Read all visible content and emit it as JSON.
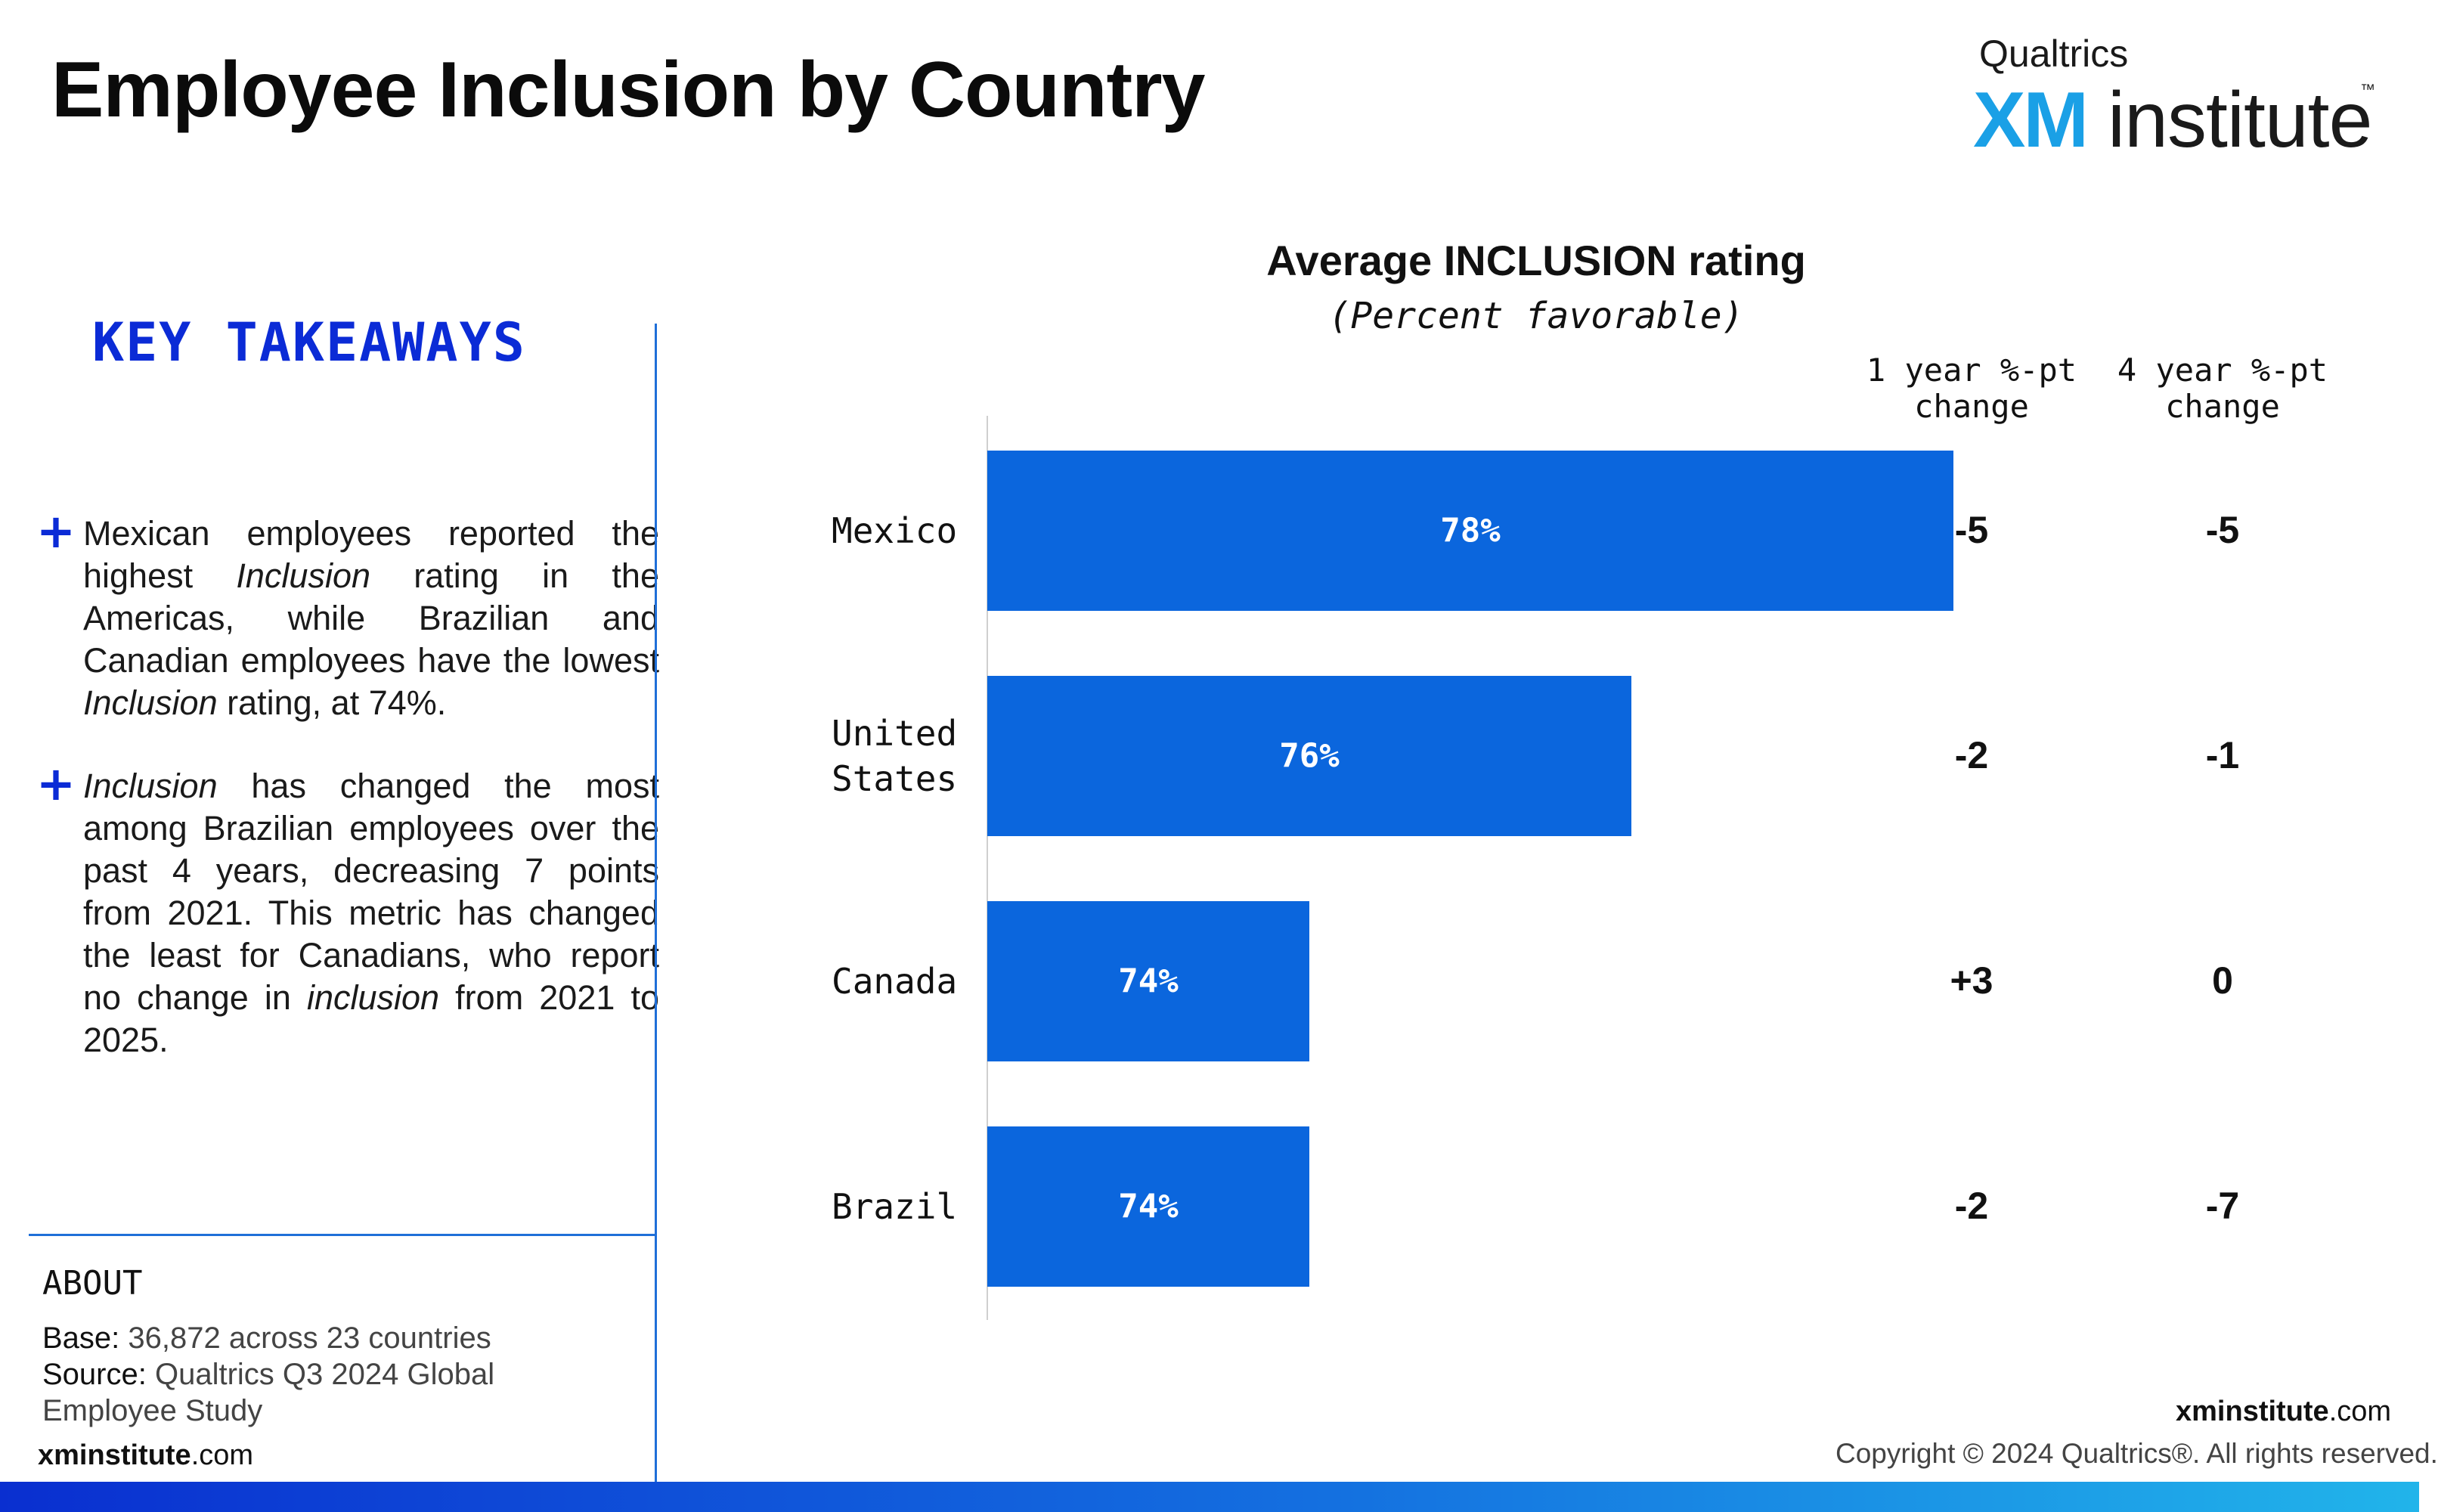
{
  "header": {
    "title": "Employee Inclusion by Country",
    "logo": {
      "top_text": "Qualtrics",
      "xm": "XM",
      "institute": "institute",
      "tm": "™"
    }
  },
  "takeaways": {
    "heading": "KEY TAKEAWAYS",
    "items": [
      {
        "parts": [
          "Mexican employees reported the highest ",
          "Inclusion",
          " rating in the Americas, while Brazilian and Canadian employees have the lowest ",
          "Inclusion",
          " rating, at 74%."
        ]
      },
      {
        "parts": [
          "Inclusion",
          " has changed the most among Brazilian employees over the past 4 years, decreasing 7 points from 2021. This metric has changed the least for Canadians, who report no change in ",
          "inclusion",
          " from 2021 to 2025."
        ]
      }
    ]
  },
  "about": {
    "heading": "ABOUT",
    "base_label": "Base:",
    "base_value": " 36,872 across 23 countries",
    "source_label": "Source:",
    "source_value": " Qualtrics Q3 2024 Global Employee Study"
  },
  "footer": {
    "site_bold": "xminstitute",
    "site_rest": ".com",
    "copyright": "Copyright © 2024 Qualtrics®. All rights reserved."
  },
  "colors": {
    "bar": "#0b66dd",
    "accent": "#0b2bd6",
    "divider": "#1f6fd8"
  },
  "chart_data": {
    "type": "bar",
    "orientation": "horizontal",
    "title": "Average INCLUSION rating",
    "subtitle": "(Percent favorable)",
    "categories": [
      "Mexico",
      "United States",
      "Canada",
      "Brazil"
    ],
    "category_lines": [
      [
        "Mexico"
      ],
      [
        "United",
        "States"
      ],
      [
        "Canada"
      ],
      [
        "Brazil"
      ]
    ],
    "values": [
      78,
      76,
      74,
      74
    ],
    "value_labels": [
      "78%",
      "76%",
      "74%",
      "74%"
    ],
    "xlim": [
      72,
      80
    ],
    "grid": false,
    "columns": [
      {
        "header": [
          "1 year %-pt",
          "change"
        ],
        "values": [
          "-5",
          "-2",
          "+3",
          "-2"
        ]
      },
      {
        "header": [
          "4 year %-pt",
          "change"
        ],
        "values": [
          "-5",
          "-1",
          "0",
          "-7"
        ]
      }
    ]
  }
}
